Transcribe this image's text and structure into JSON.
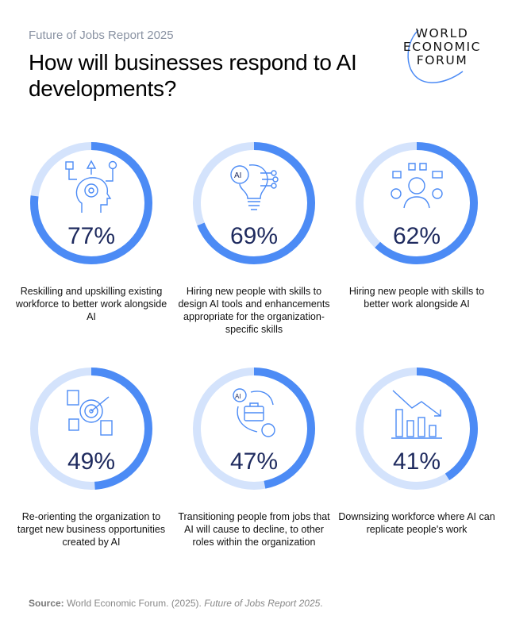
{
  "header": {
    "subtitle": "Future of Jobs Report 2025",
    "title": "How will businesses respond to AI developments?",
    "logo_text": [
      "WORLD",
      "ECONOMIC",
      "FORUM"
    ]
  },
  "colors": {
    "ring_fill": "#4c8bf5",
    "ring_track": "#d4e3fc",
    "percent_text": "#1e2a5e",
    "icon": "#4c8bf5"
  },
  "chart_data": {
    "type": "donut",
    "unit": "%",
    "items": [
      {
        "value": 77,
        "label_text": "77%",
        "label": "Reskilling and upskilling existing workforce to better work alongside AI",
        "icon": "head-gear-icon"
      },
      {
        "value": 69,
        "label_text": "69%",
        "label": "Hiring new people with skills to design AI tools and enhancements appropriate for the organization-specific skills",
        "icon": "ai-lightbulb-icon"
      },
      {
        "value": 62,
        "label_text": "62%",
        "label": "Hiring new people with skills to better work alongside AI",
        "icon": "person-ai-icon"
      },
      {
        "value": 49,
        "label_text": "49%",
        "label": "Re-orienting the organization to target new business opportunities created by AI",
        "icon": "target-documents-icon"
      },
      {
        "value": 47,
        "label_text": "47%",
        "label": "Transitioning people from jobs that AI will cause to decline, to other roles within the organization",
        "icon": "briefcase-transition-icon"
      },
      {
        "value": 41,
        "label_text": "41%",
        "label": "Downsizing workforce where AI can replicate people's work",
        "icon": "declining-bars-icon"
      }
    ]
  },
  "source": {
    "prefix": "Source:",
    "text": "World Economic Forum. (2025). ",
    "title": "Future of Jobs Report 2025",
    "suffix": "."
  }
}
